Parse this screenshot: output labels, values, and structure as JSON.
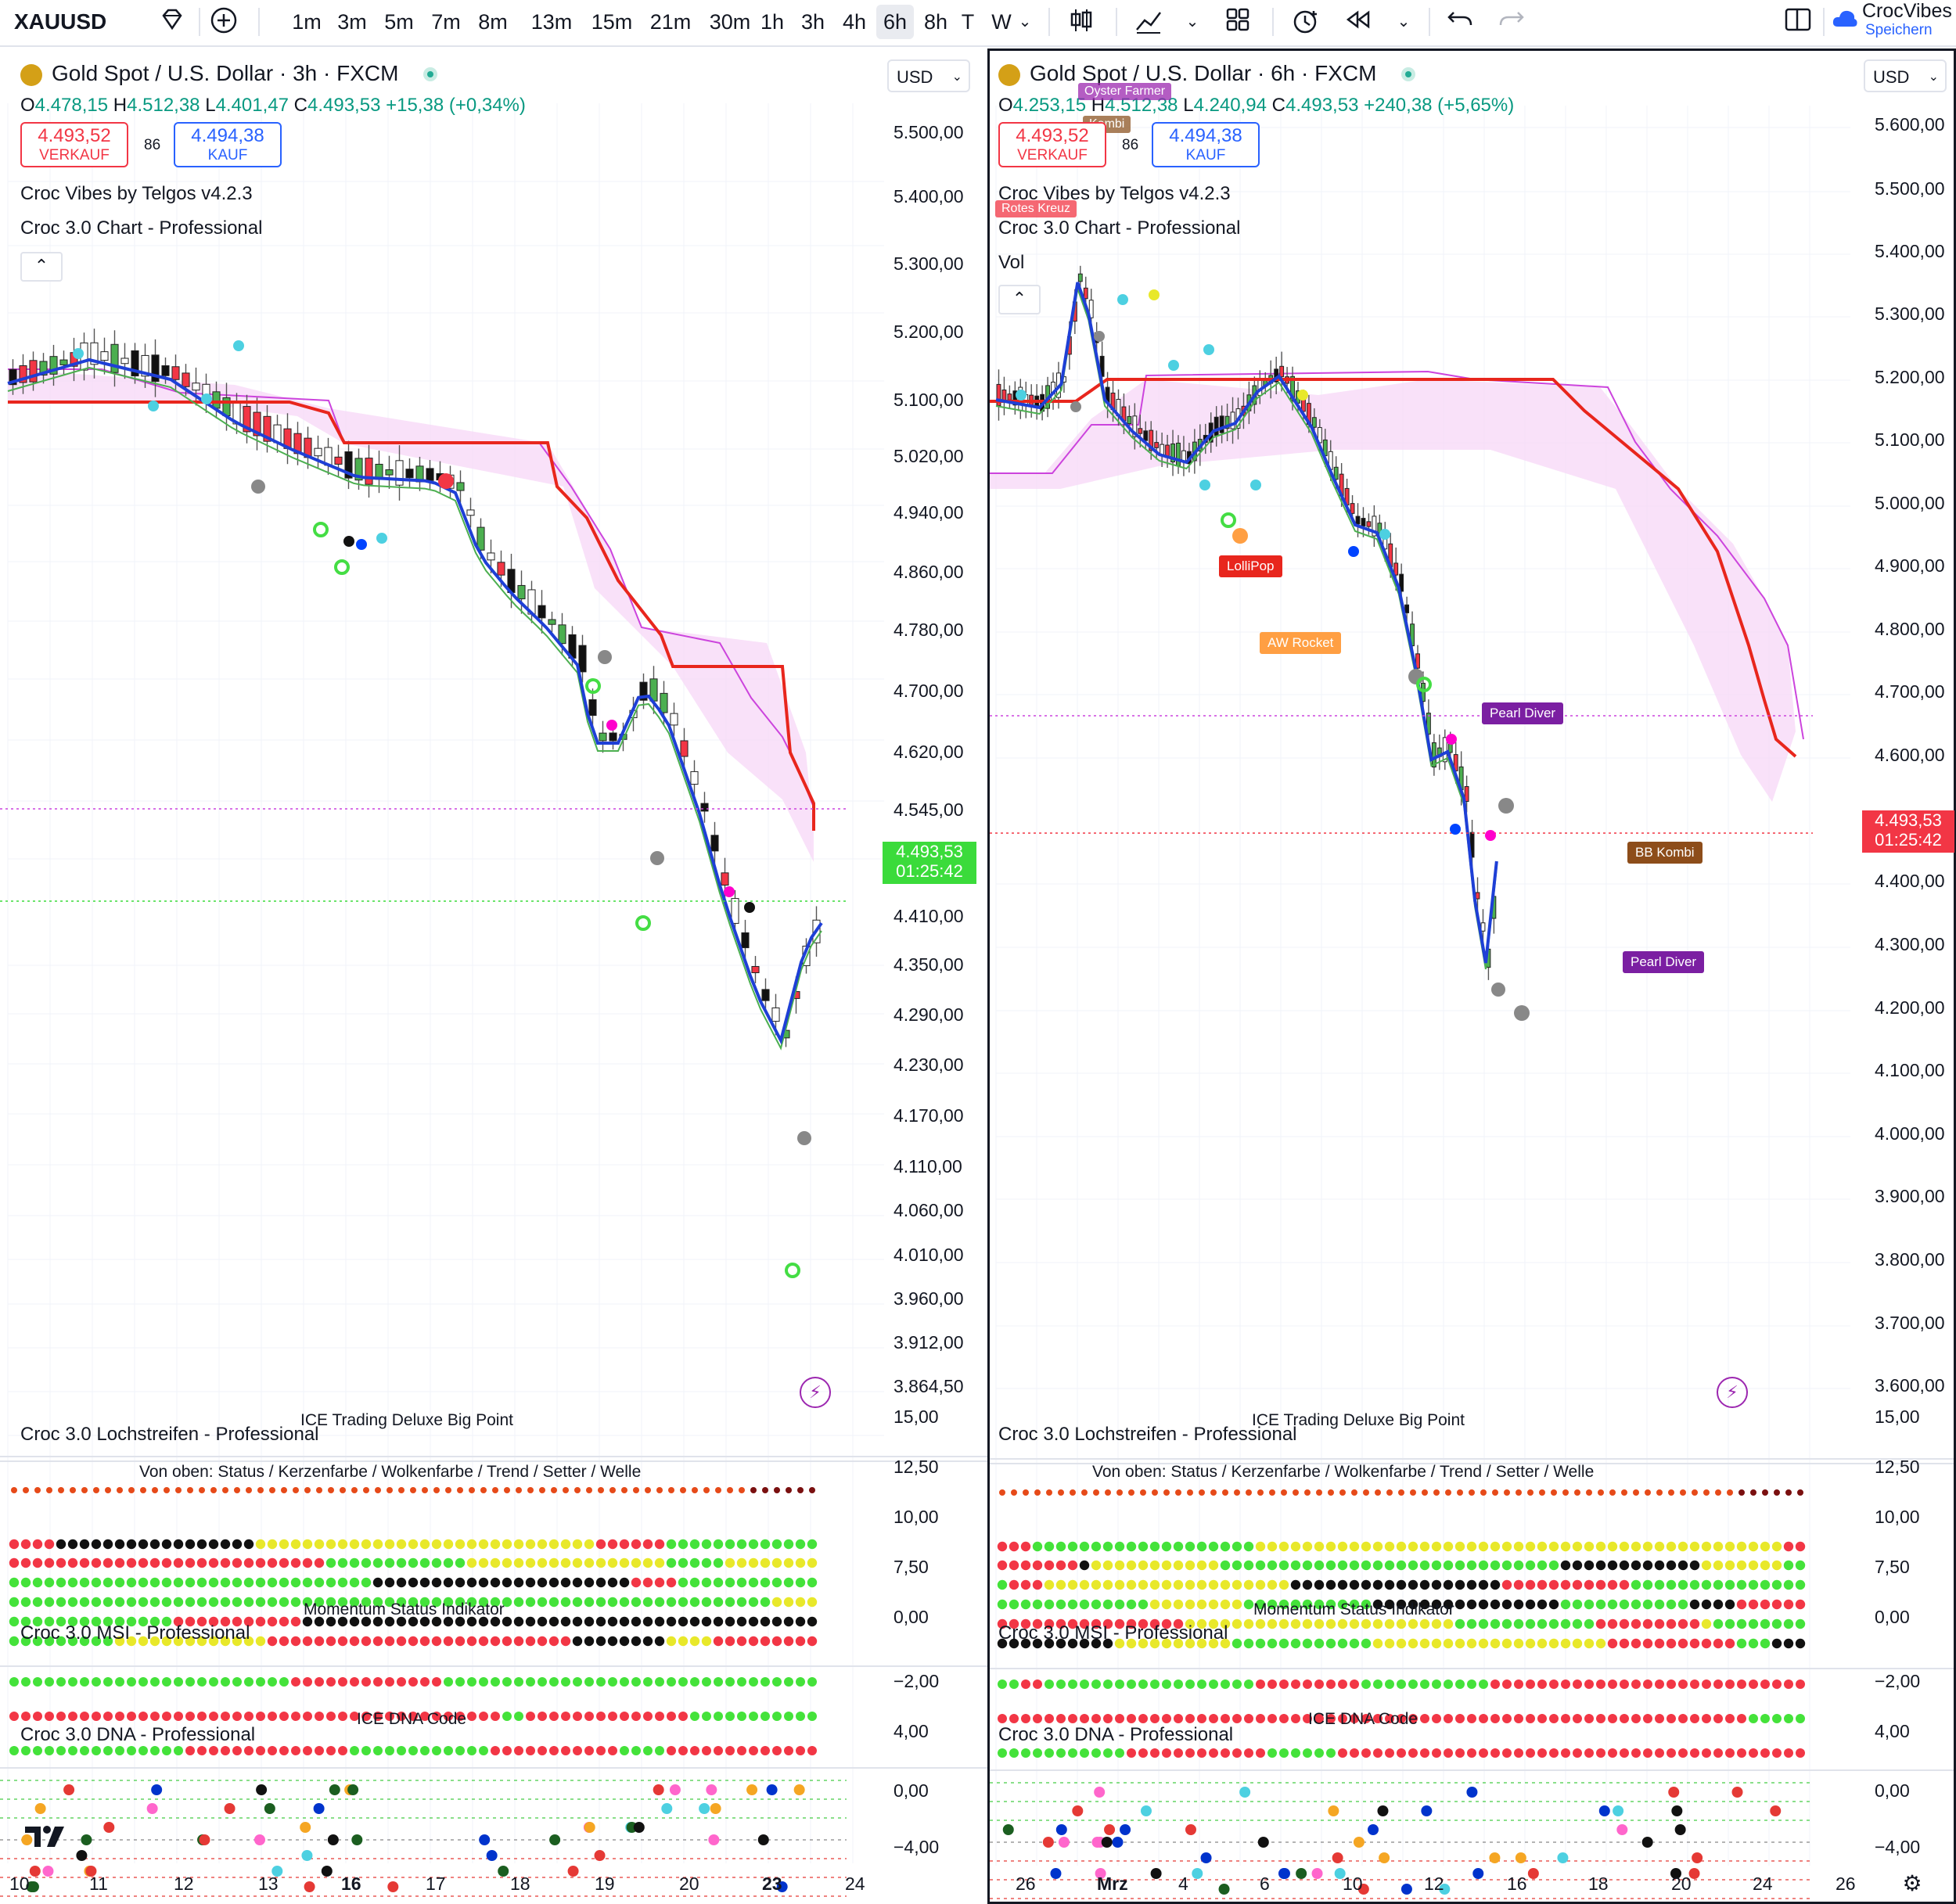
{
  "toolbar": {
    "symbol": "XAUUSD",
    "intervals": [
      "1m",
      "3m",
      "5m",
      "7m",
      "8m",
      "13m",
      "15m",
      "21m",
      "30m",
      "1h",
      "3h",
      "4h",
      "6h",
      "8h",
      "T",
      "W"
    ],
    "active_interval": "6h",
    "account_name": "CrocVibes",
    "account_sub": "Speichern"
  },
  "left": {
    "title": "Gold Spot / U.S. Dollar · 3h · FXCM",
    "ohlc": {
      "o_label": "O",
      "o": "4.478,15",
      "h_label": "H",
      "h": "4.512,38",
      "l_label": "L",
      "l": "4.401,47",
      "c_label": "C",
      "c": "4.493,53",
      "change": "+15,38 (+0,34%)"
    },
    "sell": {
      "price": "4.493,52",
      "label": "VERKAUF"
    },
    "spread": "86",
    "buy": {
      "price": "4.494,38",
      "label": "KAUF"
    },
    "indicators": [
      "Croc Vibes by Telgos v4.2.3",
      "Croc 3.0 Chart - Professional"
    ],
    "currency": "USD",
    "price_axis": [
      "5.500,00",
      "5.400,00",
      "5.300,00",
      "5.200,00",
      "5.100,00",
      "5.020,00",
      "4.940,00",
      "4.860,00",
      "4.780,00",
      "4.700,00",
      "4.620,00",
      "4.545,00",
      "4.410,00",
      "4.350,00",
      "4.290,00",
      "4.230,00",
      "4.170,00",
      "4.110,00",
      "4.060,00",
      "4.010,00",
      "3.960,00",
      "3.912,00",
      "3.864,50"
    ],
    "last_price": "4.493,53",
    "countdown": "01:25:42",
    "dates": [
      "10",
      "11",
      "12",
      "13",
      "16",
      "17",
      "18",
      "19",
      "20",
      "23",
      "24"
    ],
    "bold_dates": [
      "16",
      "23"
    ]
  },
  "right": {
    "title": "Gold Spot / U.S. Dollar · 6h · FXCM",
    "ohlc": {
      "o_label": "O",
      "o": "4.253,15",
      "h_label": "H",
      "h": "4.512,38",
      "l_label": "L",
      "l": "4.240,94",
      "c_label": "C",
      "c": "4.493,53",
      "change": "+240,38 (+5,65%)"
    },
    "sell": {
      "price": "4.493,52",
      "label": "VERKAUF"
    },
    "spread": "86",
    "buy": {
      "price": "4.494,38",
      "label": "KAUF"
    },
    "indicators": [
      "Croc Vibes by Telgos v4.2.3",
      "Croc 3.0 Chart - Professional",
      "Vol"
    ],
    "currency": "USD",
    "price_axis": [
      "5.600,00",
      "5.500,00",
      "5.400,00",
      "5.300,00",
      "5.200,00",
      "5.100,00",
      "5.000,00",
      "4.900,00",
      "4.800,00",
      "4.700,00",
      "4.600,00",
      "4.400,00",
      "4.300,00",
      "4.200,00",
      "4.100,00",
      "4.000,00",
      "3.900,00",
      "3.800,00",
      "3.700,00",
      "3.600,00"
    ],
    "last_price": "4.493,53",
    "countdown": "01:25:42",
    "signals": [
      "LolliPop",
      "AW Rocket",
      "Pearl Diver",
      "BB Kombi",
      "Pearl Diver"
    ],
    "top_signals": [
      "Oyster Farmer",
      "Kombi",
      "Rotes Kreuz"
    ],
    "dates": [
      "26",
      "Mrz",
      "4",
      "6",
      "10",
      "12",
      "16",
      "18",
      "20",
      "24",
      "26"
    ],
    "bold_dates": [
      "Mrz"
    ]
  },
  "panes": {
    "lochstreifen": {
      "name": "Croc 3.0 Lochstreifen - Professional",
      "subtitle": "ICE Trading Deluxe Big Point",
      "legend": "Von oben: Status / Kerzenfarbe / Wolkenfarbe / Trend / Setter / Welle",
      "axis": [
        "15,00",
        "12,50",
        "10,00",
        "7,50"
      ]
    },
    "msi": {
      "name": "Croc 3.0 MSI - Professional",
      "subtitle": "Momentum Status Indikator",
      "axis": [
        "0,00",
        "−2,00"
      ]
    },
    "dna": {
      "name": "Croc 3.0 DNA - Professional",
      "subtitle": "ICE DNA Code",
      "axis": [
        "4,00",
        "0,00",
        "−4,00"
      ]
    }
  },
  "colors": {
    "bull": "#4caf50",
    "bear": "#f23645",
    "blue": "#1e3fd6",
    "red_line": "#e8261d",
    "cloud": "#f7d7f7",
    "cyan": "#4dd0e1",
    "volume_up": "#8ec8c3",
    "volume_down": "#eba3a3"
  },
  "icons": [
    "diamond-icon",
    "plus-circle-icon",
    "candles-icon",
    "indicators-icon",
    "layout-icon",
    "alert-icon",
    "replay-icon",
    "undo-icon",
    "redo-icon",
    "panel-icon",
    "cloud-icon",
    "lightning-icon",
    "settings-icon",
    "tradingview-logo"
  ]
}
